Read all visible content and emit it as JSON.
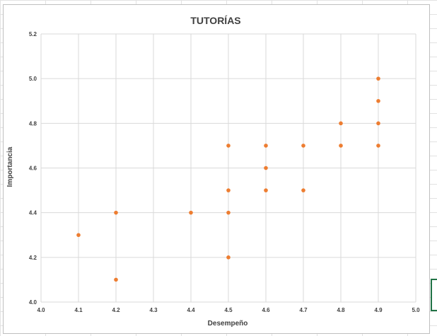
{
  "chart_data": {
    "type": "scatter",
    "title": "TUTORÍAS",
    "xlabel": "Desempeño",
    "ylabel": "Importancia",
    "xlim": [
      4.0,
      5.0
    ],
    "ylim": [
      4.0,
      5.2
    ],
    "x_ticks": [
      "4.0",
      "4.1",
      "4.2",
      "4.3",
      "4.4",
      "4.5",
      "4.6",
      "4.7",
      "4.8",
      "4.9",
      "5.0"
    ],
    "y_ticks": [
      "4.0",
      "4.2",
      "4.4",
      "4.6",
      "4.8",
      "5.0",
      "5.2"
    ],
    "grid": true,
    "legend": "none",
    "marker_color": "#ED7D31",
    "points": [
      {
        "x": 4.1,
        "y": 4.3
      },
      {
        "x": 4.2,
        "y": 4.4
      },
      {
        "x": 4.2,
        "y": 4.1
      },
      {
        "x": 4.4,
        "y": 4.4
      },
      {
        "x": 4.5,
        "y": 4.7
      },
      {
        "x": 4.5,
        "y": 4.5
      },
      {
        "x": 4.5,
        "y": 4.4
      },
      {
        "x": 4.5,
        "y": 4.2
      },
      {
        "x": 4.6,
        "y": 4.7
      },
      {
        "x": 4.6,
        "y": 4.6
      },
      {
        "x": 4.6,
        "y": 4.5
      },
      {
        "x": 4.7,
        "y": 4.7
      },
      {
        "x": 4.7,
        "y": 4.5
      },
      {
        "x": 4.8,
        "y": 4.8
      },
      {
        "x": 4.8,
        "y": 4.7
      },
      {
        "x": 4.9,
        "y": 5.0
      },
      {
        "x": 4.9,
        "y": 4.9
      },
      {
        "x": 4.9,
        "y": 4.8
      },
      {
        "x": 4.9,
        "y": 4.7
      }
    ]
  }
}
